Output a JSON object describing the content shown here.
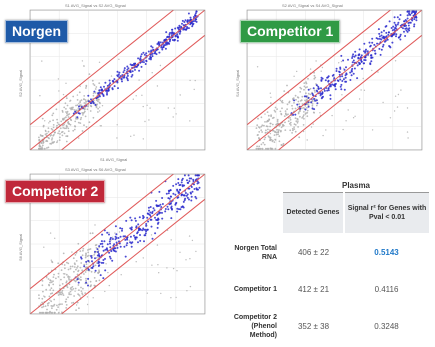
{
  "chart_data": [
    {
      "type": "scatter",
      "panel_title": "S1 AVG_Signal vs S2 AVG_Signal",
      "badge": "Norgen",
      "badge_color": "#1e5aa8",
      "xlabel": "S1 AVG_Signal",
      "ylabel": "S2 AVG_Signal",
      "scale": "log",
      "series": [
        {
          "color": "#2a2acd"
        },
        {
          "color": "#b0b0b0"
        }
      ],
      "reference_lines": {
        "color": "#e05a5a",
        "count": 3
      }
    },
    {
      "type": "scatter",
      "panel_title": "S2 AVG_Signal vs S4 AVG_Signal",
      "badge": "Competitor 1",
      "badge_color": "#2f9a45",
      "xlabel": "",
      "ylabel": "S4 AVG_Signal",
      "scale": "log",
      "series": [
        {
          "color": "#2a2acd"
        },
        {
          "color": "#b0b0b0"
        }
      ],
      "reference_lines": {
        "color": "#e05a5a",
        "count": 3
      }
    },
    {
      "type": "scatter",
      "panel_title": "S3 AVG_Signal vs S6 AVG_Signal",
      "badge": "Competitor 2",
      "badge_color": "#c0283a",
      "xlabel": "",
      "ylabel": "S6 AVG_Signal",
      "scale": "log",
      "series": [
        {
          "color": "#2a2acd"
        },
        {
          "color": "#b0b0b0"
        }
      ],
      "reference_lines": {
        "color": "#e05a5a",
        "count": 3
      }
    },
    {
      "type": "table",
      "title": "Plasma",
      "columns": [
        "Detected Genes",
        "Signal r² for Genes with Pval < 0.01"
      ],
      "rows": [
        {
          "label": "Norgen Total RNA",
          "detected": "406 ± 22",
          "signal": "0.5143",
          "highlight": true
        },
        {
          "label": "Competitor 1",
          "detected": "412 ± 21",
          "signal": "0.4116",
          "highlight": false
        },
        {
          "label": "Competitor 2 (Phenol Method)",
          "detected": "352 ± 38",
          "signal": "0.3248",
          "highlight": false
        }
      ],
      "highlight_color": "#1f78c8"
    }
  ]
}
